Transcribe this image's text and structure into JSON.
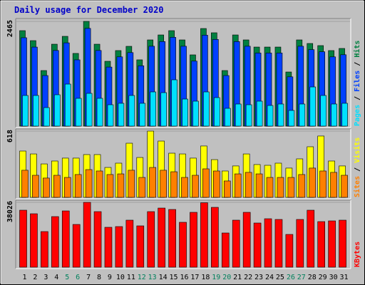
{
  "chart_data": [
    {
      "type": "bar",
      "title": "Daily usage for December 2020",
      "ylim": [
        0,
        2465
      ],
      "yticks": [
        2465
      ],
      "series": [
        {
          "name": "Hits",
          "color": "#008040",
          "values": [
            2247,
            2012,
            1308,
            1928,
            2113,
            1711,
            2465,
            1928,
            1526,
            1778,
            1878,
            1560,
            2029,
            2146,
            2247,
            2029,
            1677,
            2297,
            2197,
            1308,
            2146,
            2029,
            1861,
            1861,
            1861,
            1274,
            2029,
            1945,
            1895,
            1778,
            1828
          ]
        },
        {
          "name": "Files",
          "color": "#0040ff",
          "values": [
            2080,
            1860,
            1190,
            1780,
            1960,
            1560,
            2300,
            1780,
            1390,
            1630,
            1730,
            1420,
            1880,
            1990,
            2090,
            1880,
            1530,
            2140,
            2040,
            1190,
            1990,
            1880,
            1720,
            1720,
            1720,
            1160,
            1880,
            1800,
            1750,
            1630,
            1680
          ]
        },
        {
          "name": "Pages",
          "color": "#00e0ff",
          "values": [
            721,
            721,
            436,
            738,
            989,
            654,
            771,
            654,
            503,
            537,
            721,
            537,
            805,
            788,
            1090,
            637,
            587,
            805,
            671,
            419,
            520,
            503,
            587,
            486,
            520,
            369,
            520,
            922,
            721,
            520,
            537
          ]
        }
      ]
    },
    {
      "type": "bar",
      "ylim": [
        0,
        618
      ],
      "yticks": [
        618
      ],
      "series": [
        {
          "name": "Visits",
          "color": "#ffff00",
          "values": [
            432,
            405,
            312,
            339,
            366,
            366,
            399,
            399,
            279,
            319,
            505,
            372,
            618,
            525,
            412,
            405,
            366,
            479,
            352,
            246,
            293,
            405,
            306,
            299,
            319,
            273,
            359,
            472,
            572,
            339,
            293
          ]
        },
        {
          "name": "Sites",
          "color": "#ff8000",
          "values": [
            253,
            206,
            180,
            206,
            186,
            213,
            259,
            246,
            213,
            219,
            253,
            186,
            279,
            253,
            239,
            186,
            206,
            266,
            246,
            153,
            219,
            233,
            219,
            186,
            186,
            186,
            213,
            273,
            246,
            233,
            206
          ]
        }
      ]
    },
    {
      "type": "bar",
      "ylim": [
        0,
        38026
      ],
      "yticks": [
        38026
      ],
      "categories": [
        "1",
        "2",
        "3",
        "4",
        "5",
        "6",
        "7",
        "8",
        "9",
        "10",
        "11",
        "12",
        "13",
        "14",
        "15",
        "16",
        "17",
        "18",
        "19",
        "20",
        "21",
        "22",
        "23",
        "24",
        "25",
        "26",
        "27",
        "28",
        "29",
        "30",
        "31"
      ],
      "category_colors": [
        "#000000",
        "#000000",
        "#000000",
        "#000000",
        "#00805c",
        "#00805c",
        "#000000",
        "#000000",
        "#000000",
        "#000000",
        "#000000",
        "#00805c",
        "#00805c",
        "#000000",
        "#000000",
        "#000000",
        "#000000",
        "#000000",
        "#00805c",
        "#00805c",
        "#000000",
        "#000000",
        "#000000",
        "#000000",
        "#000000",
        "#00805c",
        "#00805c",
        "#000000",
        "#000000",
        "#000000",
        "#000000"
      ],
      "series": [
        {
          "name": "KBytes",
          "color": "#ff0000",
          "values": [
            33430,
            31340,
            20890,
            29670,
            33010,
            25070,
            38026,
            32590,
            23400,
            23820,
            27580,
            24240,
            32590,
            34680,
            33850,
            26330,
            32180,
            37800,
            35100,
            20060,
            27580,
            32180,
            25910,
            28420,
            28000,
            19220,
            28000,
            33430,
            26740,
            27160,
            27580
          ]
        }
      ]
    }
  ]
}
